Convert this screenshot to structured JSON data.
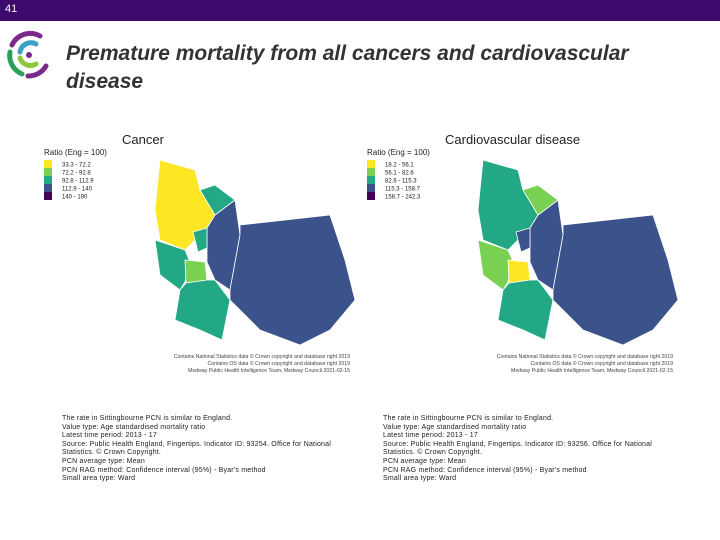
{
  "slide_number": "41",
  "title": "Premature mortality from all cancers and cardiovascular disease",
  "maps": [
    {
      "title": "Cancer",
      "legend_title": "Ratio (Eng = 100)",
      "legend": [
        {
          "label": "33.3 - 72.2",
          "color": "#fde725"
        },
        {
          "label": "72.2 - 92.8",
          "color": "#7ad151"
        },
        {
          "label": "92.8 - 112.9",
          "color": "#22a884"
        },
        {
          "label": "112.9 - 140",
          "color": "#3b528b"
        },
        {
          "label": "140 - 190",
          "color": "#440154"
        }
      ],
      "credits": [
        "Contains National Statistics data © Crown copyright and database right 2019",
        "Contains OS data © Crown copyright and database right 2019",
        "Medway Public Health Intelligence Team, Medway Council 2021-02-15"
      ],
      "notes": [
        "The rate in Sittingbourne PCN is similar to England.",
        "Value type: Age standardised mortality ratio",
        "Latest time period: 2013 - 17",
        "Source: Public Health England, Fingertips. Indicator ID: 93254. Office for National Statistics. © Crown Copyright.",
        "PCN average type: Mean",
        "PCN RAG method: Confidence interval (95%) - Byar's method",
        "Small area type: Ward"
      ]
    },
    {
      "title": "Cardiovascular disease",
      "legend_title": "Ratio (Eng = 100)",
      "legend": [
        {
          "label": "18.2 - 56.1",
          "color": "#fde725"
        },
        {
          "label": "56.1 - 82.6",
          "color": "#7ad151"
        },
        {
          "label": "82.6 - 115.3",
          "color": "#22a884"
        },
        {
          "label": "115.3 - 158.7",
          "color": "#3b528b"
        },
        {
          "label": "158.7 - 242.3",
          "color": "#440154"
        }
      ],
      "credits": [
        "Contains National Statistics data © Crown copyright and database right 2019",
        "Contains OS data © Crown copyright and database right 2019",
        "Medway Public Health Intelligence Team, Medway Council 2021-02-15"
      ],
      "notes": [
        "The rate in Sittingbourne PCN is similar to England.",
        "Value type: Age standardised mortality ratio",
        "Latest time period: 2013 - 17",
        "Source: Public Health England, Fingertips. Indicator ID: 93256. Office for National Statistics. © Crown Copyright.",
        "PCN average type: Mean",
        "PCN RAG method: Confidence interval (95%) - Byar's method",
        "Small area type: Ward"
      ]
    }
  ]
}
